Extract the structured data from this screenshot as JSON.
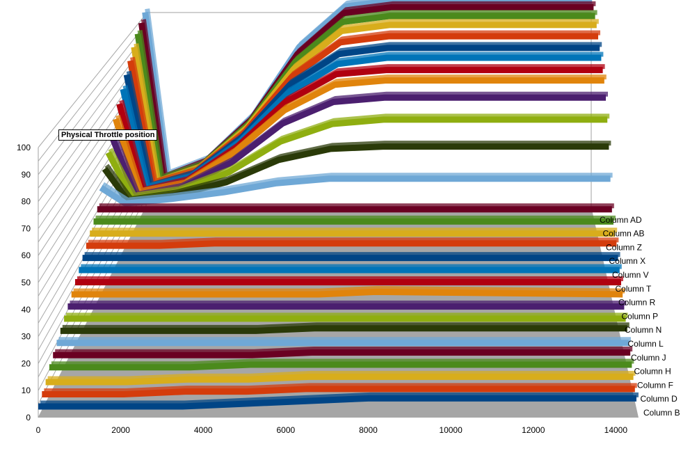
{
  "chart_data": {
    "type": "line",
    "variant": "3d-deep-ribbons",
    "title": "Physical Throttle position",
    "xlabel": "",
    "ylabel": "",
    "xlim": [
      0,
      14500
    ],
    "ylim": [
      0,
      100
    ],
    "x_ticks": [
      0,
      2000,
      4000,
      6000,
      8000,
      10000,
      12000,
      14000
    ],
    "y_ticks": [
      0,
      10,
      20,
      30,
      40,
      50,
      60,
      70,
      80,
      90,
      100
    ],
    "grid": true,
    "legend_labels": [
      "Column B",
      "Column D",
      "Column F",
      "Column H",
      "Column J",
      "Column L",
      "Column N",
      "Column P",
      "Column R",
      "Column T",
      "Column V",
      "Column X",
      "Column Z",
      "Column AB",
      "Column AD"
    ],
    "x": [
      0,
      700,
      2000,
      3500,
      5000,
      6500,
      8000,
      14500
    ],
    "palette": [
      "#004586",
      "#d43c0c",
      "#d8ad1c",
      "#4b8a1c",
      "#6a0022",
      "#6fa8d6",
      "#2a3a08",
      "#8fae10",
      "#4b1f6f",
      "#e0840c",
      "#b00010",
      "#0074b8"
    ],
    "series": [
      {
        "values": [
          0,
          0,
          0,
          0,
          1,
          2,
          3,
          3
        ]
      },
      {
        "values": [
          0,
          0,
          0,
          1,
          1,
          2,
          2,
          2
        ]
      },
      {
        "values": [
          0,
          0,
          0,
          1,
          1,
          2,
          2,
          2
        ]
      },
      {
        "values": [
          1,
          1,
          1,
          1,
          2,
          2,
          2,
          2
        ]
      },
      {
        "values": [
          1,
          1,
          1,
          1,
          1,
          2,
          2,
          2
        ]
      },
      {
        "values": [
          1,
          1,
          1,
          1,
          1,
          1,
          1,
          1
        ]
      },
      {
        "values": [
          1,
          1,
          1,
          1,
          1,
          2,
          2,
          2
        ]
      },
      {
        "values": [
          1,
          1,
          1,
          1,
          1,
          1,
          1,
          1
        ]
      },
      {
        "values": [
          1,
          1,
          1,
          1,
          1,
          1,
          1,
          1
        ]
      },
      {
        "values": [
          1,
          1,
          1,
          1,
          1,
          1,
          2,
          1
        ]
      },
      {
        "values": [
          1,
          1,
          1,
          1,
          1,
          1,
          1,
          1
        ]
      },
      {
        "values": [
          1,
          1,
          1,
          1,
          1,
          1,
          1,
          1
        ]
      },
      {
        "values": [
          1,
          1,
          1,
          1,
          1,
          1,
          1,
          1
        ]
      },
      {
        "values": [
          1,
          1,
          1,
          2,
          2,
          2,
          2,
          2
        ]
      },
      {
        "values": [
          1,
          1,
          1,
          1,
          1,
          1,
          1,
          1
        ]
      },
      {
        "values": [
          1,
          1,
          1,
          1,
          1,
          1,
          1,
          1
        ]
      },
      {
        "values": [
          1,
          1,
          1,
          1,
          1,
          1,
          1,
          1
        ]
      },
      {
        "values": [
          10,
          3,
          5,
          8,
          12,
          14,
          14,
          14
        ]
      },
      {
        "values": [
          18,
          3,
          6,
          12,
          22,
          27,
          28,
          28
        ]
      },
      {
        "values": [
          25,
          4,
          7,
          16,
          30,
          38,
          40,
          40
        ]
      },
      {
        "values": [
          32,
          4,
          8,
          20,
          38,
          48,
          50,
          50
        ]
      },
      {
        "values": [
          40,
          5,
          9,
          24,
          44,
          56,
          58,
          58
        ]
      },
      {
        "values": [
          47,
          5,
          10,
          26,
          48,
          61,
          63,
          63
        ]
      },
      {
        "values": [
          54,
          6,
          11,
          28,
          52,
          66,
          69,
          69
        ]
      },
      {
        "values": [
          61,
          6,
          12,
          30,
          56,
          71,
          74,
          74
        ]
      },
      {
        "values": [
          68,
          7,
          13,
          32,
          60,
          77,
          80,
          80
        ]
      },
      {
        "values": [
          75,
          7,
          14,
          34,
          64,
          83,
          86,
          86
        ]
      },
      {
        "values": [
          82,
          8,
          15,
          36,
          68,
          88,
          91,
          91
        ]
      },
      {
        "values": [
          88,
          8,
          16,
          38,
          72,
          93,
          96,
          96
        ]
      },
      {
        "values": [
          94,
          9,
          17,
          40,
          76,
          97,
          100,
          100
        ]
      }
    ]
  }
}
